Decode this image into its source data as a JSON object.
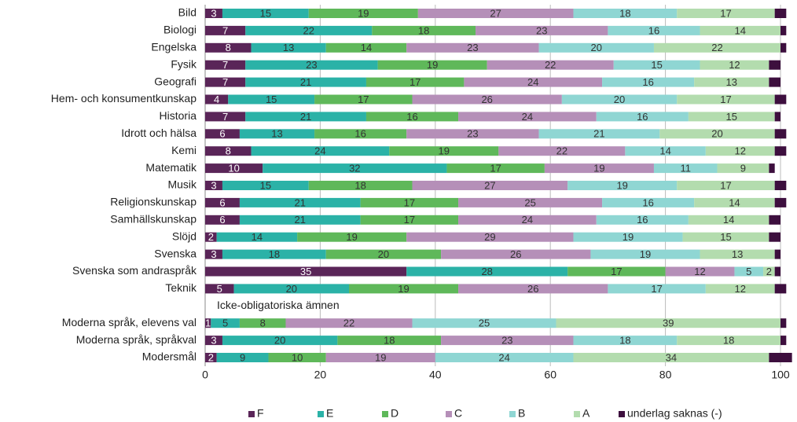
{
  "chart_data": {
    "type": "stacked_barh",
    "categories": [
      "Bild",
      "Biologi",
      "Engelska",
      "Fysik",
      "Geografi",
      "Hem- och konsumentkunskap",
      "Historia",
      "Idrott och hälsa",
      "Kemi",
      "Matematik",
      "Musik",
      "Religionskunskap",
      "Samhällskunskap",
      "Slöjd",
      "Svenska",
      "Svenska som andraspråk",
      "Teknik",
      null,
      "Moderna språk, elevens val",
      "Moderna språk, språkval",
      "Modersmål"
    ],
    "section_label": "Icke-obligatoriska ämnen",
    "series": [
      {
        "name": "F",
        "color": "#5a2558",
        "label_color": "#ffffff",
        "values": [
          3,
          7,
          8,
          7,
          7,
          4,
          7,
          6,
          8,
          10,
          3,
          6,
          6,
          2,
          3,
          35,
          5,
          null,
          1,
          3,
          2
        ]
      },
      {
        "name": "E",
        "color": "#2bb2a7",
        "label_color": "#333333",
        "values": [
          15,
          22,
          13,
          23,
          21,
          15,
          21,
          13,
          24,
          32,
          15,
          21,
          21,
          14,
          18,
          28,
          20,
          null,
          5,
          20,
          9
        ]
      },
      {
        "name": "D",
        "color": "#5fb85a",
        "label_color": "#333333",
        "values": [
          19,
          18,
          14,
          19,
          17,
          17,
          16,
          16,
          19,
          17,
          18,
          17,
          17,
          19,
          20,
          17,
          19,
          null,
          8,
          18,
          10
        ]
      },
      {
        "name": "C",
        "color": "#b58fb8",
        "label_color": "#333333",
        "values": [
          27,
          23,
          23,
          22,
          24,
          26,
          24,
          23,
          22,
          19,
          27,
          25,
          24,
          29,
          26,
          12,
          26,
          null,
          22,
          23,
          19
        ]
      },
      {
        "name": "B",
        "color": "#8fd6d3",
        "label_color": "#333333",
        "values": [
          18,
          16,
          20,
          15,
          16,
          20,
          16,
          21,
          14,
          11,
          19,
          16,
          16,
          19,
          19,
          5,
          17,
          null,
          25,
          18,
          24
        ]
      },
      {
        "name": "A",
        "color": "#b3dcae",
        "label_color": "#333333",
        "values": [
          17,
          14,
          22,
          12,
          13,
          17,
          15,
          20,
          12,
          9,
          17,
          14,
          14,
          15,
          13,
          2,
          12,
          null,
          39,
          18,
          34
        ]
      },
      {
        "name": "underlag saknas (-)",
        "color": "#3d0f3e",
        "values": [
          2,
          1,
          1,
          2,
          2,
          2,
          1,
          2,
          2,
          1,
          2,
          2,
          2,
          2,
          1,
          1,
          2,
          null,
          1,
          1,
          4
        ]
      }
    ],
    "unlabeled_series": [
      "underlag saknas (-)"
    ],
    "xlim": [
      0,
      100
    ],
    "xticks": [
      0,
      20,
      40,
      60,
      80,
      100
    ],
    "grid": true
  }
}
